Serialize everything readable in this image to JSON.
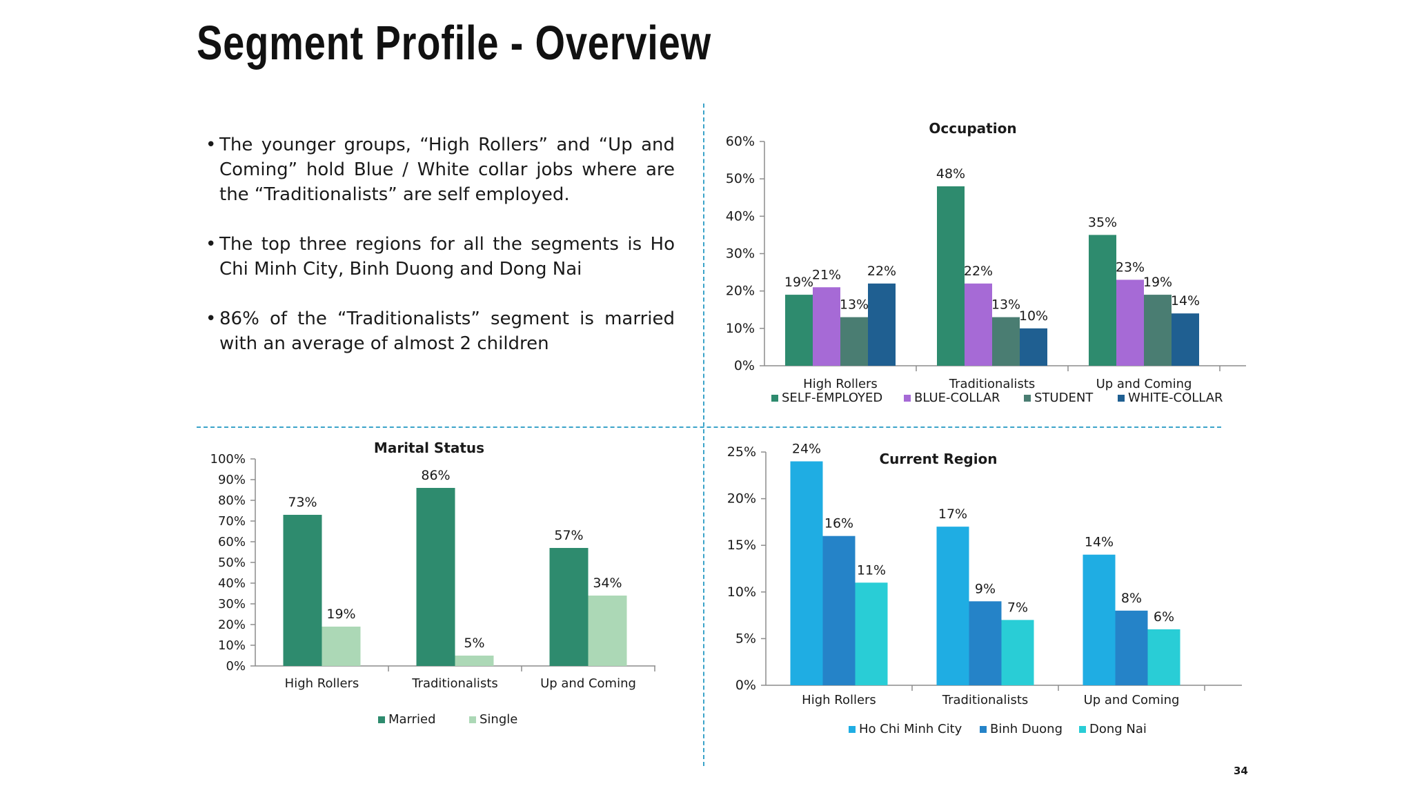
{
  "slide": {
    "title": "Segment Profile - Overview",
    "page_number": "34",
    "bullets": [
      "The younger groups, “High Rollers” and “Up and Coming” hold Blue / White collar jobs where are the “Traditionalists” are self employed.",
      "The top three regions for all the segments is Ho Chi Minh City, Binh Duong and Dong Nai",
      "86% of the “Traditionalists” segment is married with an average of almost 2 children"
    ]
  },
  "chart_data": [
    {
      "id": "occupation",
      "type": "bar",
      "title": "Occupation",
      "categories": [
        "High Rollers",
        "Traditionalists",
        "Up and Coming"
      ],
      "series": [
        {
          "name": "SELF-EMPLOYED",
          "color": "#2e8b6e",
          "values": [
            19,
            48,
            35
          ]
        },
        {
          "name": "BLUE-COLLAR",
          "color": "#a66ad6",
          "values": [
            21,
            22,
            23
          ]
        },
        {
          "name": "STUDENT",
          "color": "#4a7d72",
          "values": [
            13,
            13,
            19
          ]
        },
        {
          "name": "WHITE-COLLAR",
          "color": "#1f5f91",
          "values": [
            22,
            10,
            14
          ]
        }
      ],
      "yticks": [
        "0%",
        "10%",
        "20%",
        "30%",
        "40%",
        "50%",
        "60%"
      ],
      "ylim": [
        0,
        60
      ],
      "legend": "bottom"
    },
    {
      "id": "marital",
      "type": "bar",
      "title": "Marital Status",
      "categories": [
        "High Rollers",
        "Traditionalists",
        "Up and Coming"
      ],
      "series": [
        {
          "name": "Married",
          "color": "#2e8b6e",
          "values": [
            73,
            86,
            57
          ]
        },
        {
          "name": "Single",
          "color": "#acd8b6",
          "values": [
            19,
            5,
            34
          ]
        }
      ],
      "yticks": [
        "0%",
        "10%",
        "20%",
        "30%",
        "40%",
        "50%",
        "60%",
        "70%",
        "80%",
        "90%",
        "100%"
      ],
      "ylim": [
        0,
        100
      ],
      "legend": "bottom"
    },
    {
      "id": "region",
      "type": "bar",
      "title": "Current Region",
      "categories": [
        "High Rollers",
        "Traditionalists",
        "Up and Coming"
      ],
      "series": [
        {
          "name": "Ho Chi Minh City",
          "color": "#1fade3",
          "values": [
            24,
            17,
            14
          ]
        },
        {
          "name": "Binh Duong",
          "color": "#2583c8",
          "values": [
            16,
            9,
            8
          ]
        },
        {
          "name": "Dong Nai",
          "color": "#29cdd6",
          "values": [
            11,
            7,
            6
          ]
        }
      ],
      "yticks": [
        "0%",
        "5%",
        "10%",
        "15%",
        "20%",
        "25%"
      ],
      "ylim": [
        0,
        25
      ],
      "legend": "bottom"
    }
  ]
}
